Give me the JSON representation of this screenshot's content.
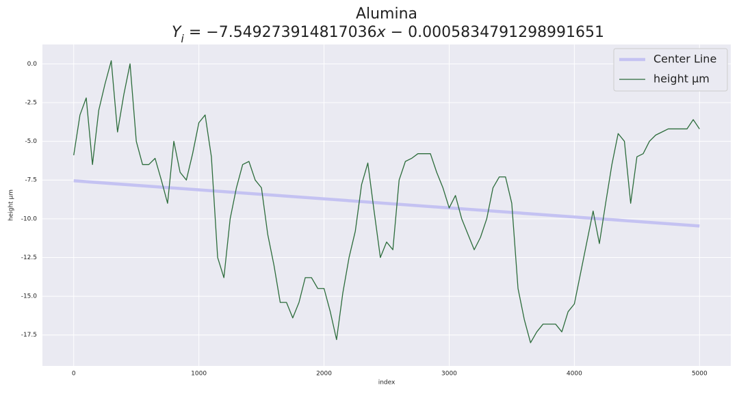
{
  "chart_data": {
    "type": "line",
    "title": "Alumina",
    "subtitle_parts": [
      "Y",
      "i",
      " = −7.549273914817036",
      "x",
      " − 0.0005834791298991651"
    ],
    "xlabel": "index",
    "ylabel": "height μm",
    "xlim": [
      -250,
      5250
    ],
    "ylim": [
      -19.5,
      1.25
    ],
    "xticks": [
      0,
      1000,
      2000,
      3000,
      4000,
      5000
    ],
    "yticks": [
      {
        "value": 0,
        "label": "0.0"
      },
      -2.5,
      {
        "value": -5,
        "label": "-5.0"
      },
      -7.5,
      {
        "value": -10,
        "label": "-10.0"
      },
      -12.5,
      {
        "value": -15,
        "label": "-15.0"
      },
      -17.5
    ],
    "grid": true,
    "legend": "upper right",
    "series": [
      {
        "name": "Center Line",
        "color": "#c4c2f2",
        "width": 4.5,
        "x": [
          0,
          5000
        ],
        "values": [
          -7.549,
          -10.467
        ]
      },
      {
        "name": "height μm",
        "color": "#2b6b3a",
        "width": 1.3,
        "x": [
          0,
          50,
          100,
          150,
          200,
          250,
          300,
          350,
          400,
          450,
          500,
          550,
          600,
          650,
          700,
          750,
          800,
          850,
          900,
          950,
          1000,
          1050,
          1100,
          1150,
          1200,
          1250,
          1300,
          1350,
          1400,
          1450,
          1500,
          1550,
          1600,
          1650,
          1700,
          1750,
          1800,
          1850,
          1900,
          1950,
          2000,
          2050,
          2100,
          2150,
          2200,
          2250,
          2300,
          2350,
          2400,
          2450,
          2500,
          2550,
          2600,
          2650,
          2700,
          2750,
          2800,
          2850,
          2900,
          2950,
          3000,
          3050,
          3100,
          3150,
          3200,
          3250,
          3300,
          3350,
          3400,
          3450,
          3500,
          3550,
          3600,
          3650,
          3700,
          3750,
          3800,
          3850,
          3900,
          3950,
          4000,
          4050,
          4100,
          4150,
          4200,
          4250,
          4300,
          4350,
          4400,
          4450,
          4500,
          4550,
          4600,
          4650,
          4700,
          4750,
          4800,
          4850,
          4900,
          4950,
          5000
        ],
        "values": [
          -5.9,
          -3.3,
          -2.2,
          -6.5,
          -3.0,
          -1.3,
          0.2,
          -4.4,
          -2.0,
          0.0,
          -5.0,
          -6.5,
          -6.5,
          -6.1,
          -7.5,
          -9.0,
          -5.0,
          -7.0,
          -7.5,
          -5.8,
          -3.8,
          -3.3,
          -6.0,
          -12.5,
          -13.8,
          -10.0,
          -8.0,
          -6.5,
          -6.3,
          -7.5,
          -8.0,
          -11.0,
          -13.0,
          -15.4,
          -15.4,
          -16.4,
          -15.4,
          -13.8,
          -13.8,
          -14.5,
          -14.5,
          -16.0,
          -17.8,
          -14.8,
          -12.5,
          -10.8,
          -7.8,
          -6.4,
          -9.5,
          -12.5,
          -11.5,
          -12.0,
          -7.5,
          -6.3,
          -6.1,
          -5.8,
          -5.8,
          -5.8,
          -7.0,
          -8.0,
          -9.3,
          -8.5,
          -10.0,
          -11.0,
          -12.0,
          -11.2,
          -10.0,
          -8.0,
          -7.3,
          -7.3,
          -9.0,
          -14.5,
          -16.5,
          -18.0,
          -17.3,
          -16.8,
          -16.8,
          -16.8,
          -17.3,
          -16.0,
          -15.5,
          -13.5,
          -11.5,
          -9.5,
          -11.6,
          -9.0,
          -6.5,
          -4.5,
          -5.0,
          -9.0,
          -6.0,
          -5.8,
          -5.0,
          -4.6,
          -4.4,
          -4.2,
          -4.2,
          -4.2,
          -4.2,
          -3.6,
          -4.2
        ]
      }
    ]
  }
}
